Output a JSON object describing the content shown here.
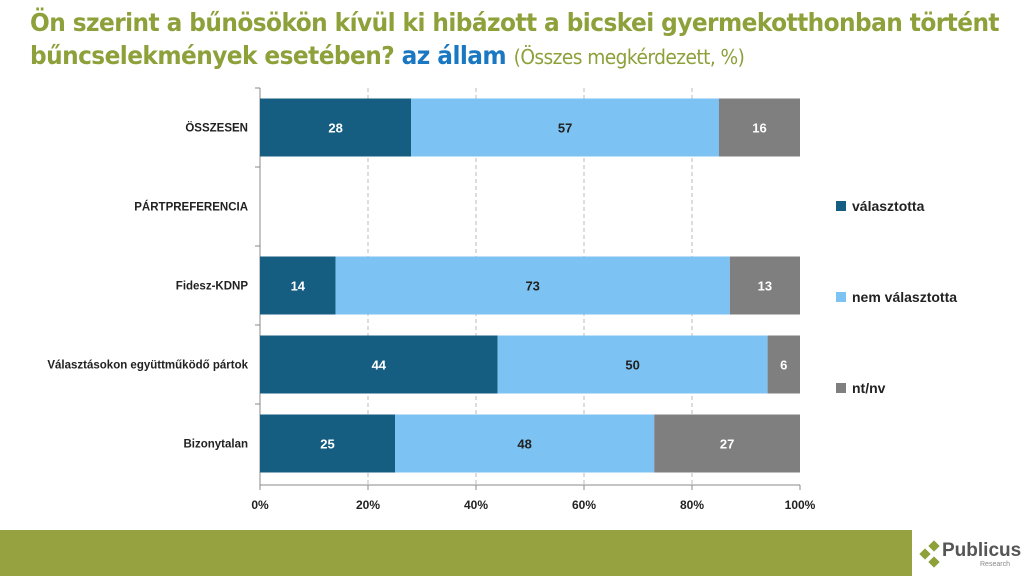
{
  "title": {
    "line1": "Ön szerint a bűnösökön kívül ki hibázott a bicskei gyermekotthonban történt",
    "line2": "bűncselekmények esetében?",
    "highlight": "az állam",
    "subtitle": "(Összes megkérdezett, %)"
  },
  "logo": {
    "name": "Publicus",
    "tagline": "Research"
  },
  "chart_data": {
    "type": "bar",
    "stacked": true,
    "orientation": "horizontal",
    "categories": [
      "ÖSSZESEN",
      "PÁRTPREFERENCIA",
      "Fidesz-KDNP",
      "Választásokon együttműködő pártok",
      "Bizonytalan"
    ],
    "series": [
      {
        "name": "választotta",
        "color": "#155e82",
        "values": [
          28,
          null,
          14,
          44,
          25
        ]
      },
      {
        "name": "nem választotta",
        "color": "#7cc3f3",
        "values": [
          57,
          null,
          73,
          50,
          48
        ]
      },
      {
        "name": "nt/nv",
        "color": "#7f7f7f",
        "values": [
          16,
          null,
          13,
          6,
          27
        ]
      }
    ],
    "xticks": [
      "0%",
      "20%",
      "40%",
      "60%",
      "80%",
      "100%"
    ],
    "xlim": [
      0,
      100
    ],
    "grid": "vertical dashed",
    "legend": "right"
  }
}
